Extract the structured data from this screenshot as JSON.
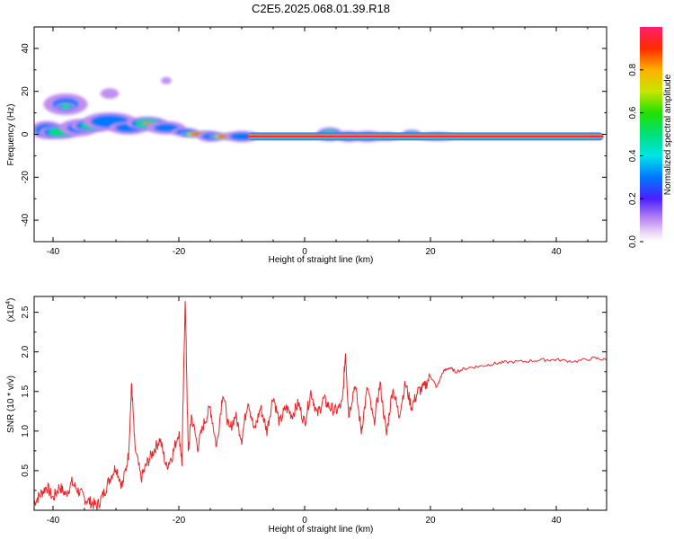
{
  "title": "C2E5.2025.068.01.39.R18",
  "colors": {
    "snr_line": "#e8262a",
    "axis": "#000000"
  },
  "chart_data": [
    {
      "type": "heatmap",
      "xlabel": "Height of straight line (km)",
      "ylabel": "Frequency (Hz)",
      "xlim": [
        -43,
        48
      ],
      "ylim": [
        -50,
        50
      ],
      "xticks": [
        "-40",
        "-20",
        "0",
        "20",
        "40"
      ],
      "yticks": [
        "40",
        "20",
        "0",
        "-20",
        "-40"
      ],
      "colorbar": {
        "label": "Normalized spectral amplitude",
        "range": [
          0,
          1
        ],
        "ticks": [
          "0.0",
          "0.2",
          "0.4",
          "0.6",
          "0.8"
        ]
      },
      "blobs": [
        {
          "x": -41,
          "y": 2,
          "rx": 2.5,
          "ry": 4,
          "v": 0.45
        },
        {
          "x": -38,
          "y": 14,
          "rx": 3.5,
          "ry": 5,
          "v": 0.3
        },
        {
          "x": -38,
          "y": 13,
          "rx": 1.5,
          "ry": 2,
          "v": 0.5
        },
        {
          "x": -39,
          "y": 1,
          "rx": 3,
          "ry": 3,
          "v": 0.55
        },
        {
          "x": -36,
          "y": 3,
          "rx": 3,
          "ry": 4,
          "v": 0.3
        },
        {
          "x": -34,
          "y": 4,
          "rx": 3,
          "ry": 3,
          "v": 0.5
        },
        {
          "x": -31,
          "y": 6,
          "rx": 4,
          "ry": 4,
          "v": 0.45
        },
        {
          "x": -31,
          "y": 19,
          "rx": 1.5,
          "ry": 2.5,
          "v": 0.25
        },
        {
          "x": -28,
          "y": 3,
          "rx": 3,
          "ry": 3,
          "v": 0.4
        },
        {
          "x": -25,
          "y": 5,
          "rx": 3,
          "ry": 3,
          "v": 0.6
        },
        {
          "x": -25,
          "y": 5,
          "rx": 1,
          "ry": 1,
          "v": 0.9
        },
        {
          "x": -22,
          "y": 3,
          "rx": 3,
          "ry": 3,
          "v": 0.35
        },
        {
          "x": -22,
          "y": 25,
          "rx": 1,
          "ry": 2,
          "v": 0.12
        },
        {
          "x": -19,
          "y": 1,
          "rx": 2,
          "ry": 2,
          "v": 0.45
        },
        {
          "x": -17,
          "y": 0,
          "rx": 2.5,
          "ry": 1.5,
          "v": 0.95
        },
        {
          "x": -15,
          "y": -1,
          "rx": 2,
          "ry": 2.5,
          "v": 0.35
        },
        {
          "x": -13,
          "y": -1,
          "rx": 2,
          "ry": 1.5,
          "v": 0.9
        },
        {
          "x": -10,
          "y": -1,
          "rx": 2.5,
          "ry": 2.5,
          "v": 0.45
        },
        {
          "x": 4,
          "y": 0,
          "rx": 2,
          "ry": 3,
          "v": 0.55
        },
        {
          "x": 4,
          "y": 0,
          "rx": 0.8,
          "ry": 1,
          "v": 0.9
        },
        {
          "x": 7,
          "y": -1,
          "rx": 2,
          "ry": 2.5,
          "v": 0.4
        },
        {
          "x": 10,
          "y": -1,
          "rx": 2.5,
          "ry": 2.5,
          "v": 0.4
        },
        {
          "x": 13,
          "y": -1,
          "rx": 2,
          "ry": 2,
          "v": 0.35
        },
        {
          "x": 17,
          "y": 0,
          "rx": 1.5,
          "ry": 2,
          "v": 0.5
        },
        {
          "x": 21,
          "y": -1,
          "rx": 3,
          "ry": 2,
          "v": 0.35
        }
      ],
      "ridge": {
        "x_start": -9,
        "x_end": 47.5,
        "y": -1,
        "v": 1.0
      }
    },
    {
      "type": "line",
      "xlabel": "Height of straight line (km)",
      "ylabel": "SNR (10 * v/v)",
      "scale_label": "(x10",
      "scale_exp": "4",
      "xlim": [
        -43,
        48
      ],
      "ylim": [
        0,
        2.7
      ],
      "xticks": [
        "-40",
        "-20",
        "0",
        "20",
        "40"
      ],
      "yticks": [
        "0.5",
        "1.0",
        "1.5",
        "2.0",
        "2.5"
      ],
      "x": [
        -43,
        -42,
        -41,
        -40,
        -39,
        -38,
        -37,
        -36,
        -35,
        -34,
        -33,
        -32,
        -31,
        -30,
        -29,
        -28,
        -27.5,
        -27,
        -26,
        -25,
        -24,
        -23,
        -22,
        -21,
        -20,
        -19.5,
        -19,
        -18.5,
        -18,
        -17,
        -16,
        -15,
        -14,
        -13,
        -12,
        -11,
        -10,
        -9,
        -8,
        -7,
        -6,
        -5,
        -4,
        -3,
        -2,
        -1,
        0,
        1,
        2,
        3,
        4,
        5,
        6,
        6.5,
        7,
        8,
        9,
        10,
        11,
        12,
        13,
        14,
        15,
        16,
        17,
        18,
        19,
        20,
        21,
        22,
        23,
        24,
        26,
        28,
        30,
        32,
        35,
        38,
        40,
        43,
        46,
        48
      ],
      "y": [
        0.1,
        0.2,
        0.3,
        0.15,
        0.3,
        0.2,
        0.35,
        0.25,
        0.15,
        0.1,
        0.05,
        0.2,
        0.4,
        0.55,
        0.3,
        0.7,
        1.6,
        0.8,
        0.4,
        0.6,
        0.75,
        0.9,
        0.55,
        0.7,
        1.0,
        0.6,
        2.7,
        0.7,
        1.2,
        0.8,
        1.1,
        1.3,
        0.8,
        1.5,
        1.0,
        1.2,
        0.9,
        1.4,
        1.0,
        1.3,
        1.0,
        1.45,
        1.1,
        1.3,
        1.2,
        1.35,
        1.1,
        1.5,
        1.2,
        1.4,
        1.3,
        1.25,
        1.35,
        2.0,
        1.2,
        1.6,
        1.0,
        1.55,
        1.1,
        1.6,
        0.95,
        1.55,
        1.2,
        1.6,
        1.3,
        1.5,
        1.55,
        1.7,
        1.55,
        1.75,
        1.8,
        1.75,
        1.8,
        1.82,
        1.85,
        1.87,
        1.88,
        1.9,
        1.9,
        1.88,
        1.92,
        1.9
      ]
    }
  ]
}
